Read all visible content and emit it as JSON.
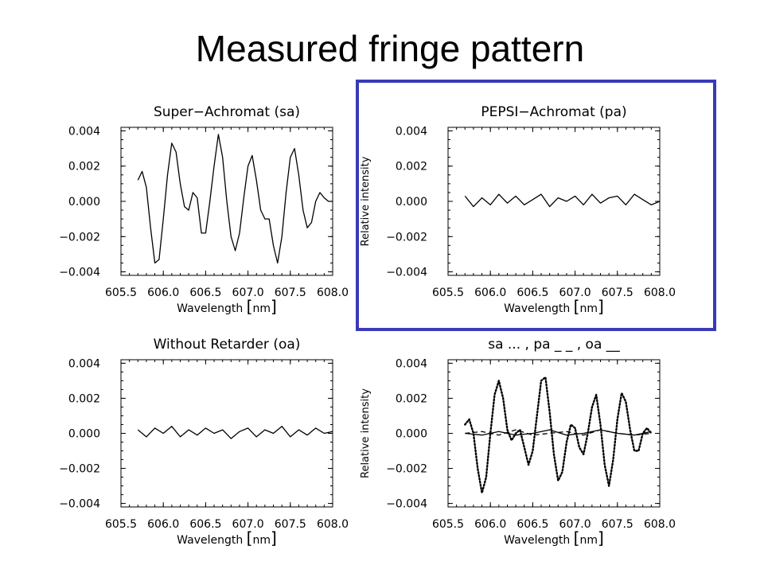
{
  "slide": {
    "title": "Measured fringe pattern",
    "highlight_color": "#3a3ab8"
  },
  "chart_data": [
    {
      "id": "sa",
      "type": "line",
      "title": "Super−Achromat (sa)",
      "xlabel": "Wavelength",
      "xunit": "nm",
      "ylabel": "",
      "xlim": [
        605.5,
        608.0
      ],
      "ylim": [
        -0.0042,
        0.0042
      ],
      "xticks": [
        "605.5",
        "606.0",
        "606.5",
        "607.0",
        "607.5",
        "608.0"
      ],
      "yticks": [
        "0.004",
        "0.002",
        "0.000",
        "−0.002",
        "−0.004"
      ],
      "series": [
        {
          "style": "solid",
          "x": [
            605.7,
            605.75,
            605.8,
            605.85,
            605.9,
            605.95,
            606.0,
            606.05,
            606.1,
            606.15,
            606.2,
            606.25,
            606.3,
            606.35,
            606.4,
            606.45,
            606.5,
            606.55,
            606.6,
            606.65,
            606.7,
            606.75,
            606.8,
            606.85,
            606.9,
            606.95,
            607.0,
            607.05,
            607.1,
            607.15,
            607.2,
            607.25,
            607.3,
            607.35,
            607.4,
            607.45,
            607.5,
            607.55,
            607.6,
            607.65,
            607.7,
            607.75,
            607.8,
            607.85,
            607.9,
            607.95,
            608.0
          ],
          "y": [
            0.0012,
            0.0017,
            0.0008,
            -0.0015,
            -0.0035,
            -0.0033,
            -0.001,
            0.0015,
            0.0033,
            0.0028,
            0.001,
            -0.0003,
            -0.0005,
            0.0005,
            0.0002,
            -0.0018,
            -0.0018,
            0.0,
            0.002,
            0.0038,
            0.0025,
            0.0,
            -0.002,
            -0.0028,
            -0.0018,
            0.0002,
            0.002,
            0.0026,
            0.0012,
            -0.0005,
            -0.001,
            -0.001,
            -0.0025,
            -0.0035,
            -0.002,
            0.0005,
            0.0025,
            0.003,
            0.0015,
            -0.0005,
            -0.0015,
            -0.0012,
            0.0,
            0.0005,
            0.0002,
            0.0,
            0.0
          ]
        }
      ]
    },
    {
      "id": "pa",
      "type": "line",
      "title": "PEPSI−Achromat (pa)",
      "xlabel": "Wavelength",
      "xunit": "nm",
      "ylabel": "Relative intensity",
      "xlim": [
        605.5,
        608.0
      ],
      "ylim": [
        -0.0042,
        0.0042
      ],
      "xticks": [
        "605.5",
        "606.0",
        "606.5",
        "607.0",
        "607.5",
        "608.0"
      ],
      "yticks": [
        "0.004",
        "0.002",
        "0.000",
        "−0.002",
        "−0.004"
      ],
      "series": [
        {
          "style": "solid",
          "x": [
            605.7,
            605.8,
            605.9,
            606.0,
            606.1,
            606.2,
            606.3,
            606.4,
            606.5,
            606.6,
            606.7,
            606.8,
            606.9,
            607.0,
            607.1,
            607.2,
            607.3,
            607.4,
            607.5,
            607.6,
            607.7,
            607.8,
            607.9,
            608.0
          ],
          "y": [
            0.0003,
            -0.0003,
            0.0002,
            -0.0002,
            0.0004,
            -0.0001,
            0.0003,
            -0.0002,
            0.0001,
            0.0004,
            -0.0003,
            0.0002,
            0.0,
            0.0003,
            -0.0002,
            0.0004,
            -0.0001,
            0.0002,
            0.0003,
            -0.0002,
            0.0004,
            0.0001,
            -0.0002,
            0.0
          ]
        }
      ]
    },
    {
      "id": "oa",
      "type": "line",
      "title": "Without Retarder (oa)",
      "xlabel": "Wavelength",
      "xunit": "nm",
      "ylabel": "",
      "xlim": [
        605.5,
        608.0
      ],
      "ylim": [
        -0.0042,
        0.0042
      ],
      "xticks": [
        "605.5",
        "606.0",
        "606.5",
        "607.0",
        "607.5",
        "608.0"
      ],
      "yticks": [
        "0.004",
        "0.002",
        "0.000",
        "−0.002",
        "−0.004"
      ],
      "series": [
        {
          "style": "solid",
          "x": [
            605.7,
            605.8,
            605.9,
            606.0,
            606.1,
            606.2,
            606.3,
            606.4,
            606.5,
            606.6,
            606.7,
            606.8,
            606.9,
            607.0,
            607.1,
            607.2,
            607.3,
            607.4,
            607.5,
            607.6,
            607.7,
            607.8,
            607.9,
            608.0
          ],
          "y": [
            0.0002,
            -0.0002,
            0.0003,
            0.0,
            0.0004,
            -0.0002,
            0.0002,
            -0.0001,
            0.0003,
            0.0,
            0.0002,
            -0.0003,
            0.0001,
            0.0003,
            -0.0002,
            0.0002,
            0.0,
            0.0004,
            -0.0002,
            0.0002,
            -0.0001,
            0.0003,
            0.0,
            0.0001
          ]
        }
      ]
    },
    {
      "id": "comparison",
      "type": "line",
      "title": "sa ... , pa _ _ , oa __",
      "xlabel": "Wavelength",
      "xunit": "nm",
      "ylabel": "Relative intensity",
      "xlim": [
        605.5,
        608.0
      ],
      "ylim": [
        -0.0042,
        0.0042
      ],
      "xticks": [
        "605.5",
        "606.0",
        "606.5",
        "607.0",
        "607.5",
        "608.0"
      ],
      "yticks": [
        "0.004",
        "0.002",
        "0.000",
        "−0.002",
        "−0.004"
      ],
      "series": [
        {
          "name": "sa",
          "style": "dotted",
          "x": [
            605.7,
            605.75,
            605.8,
            605.85,
            605.9,
            605.95,
            606.0,
            606.05,
            606.1,
            606.15,
            606.2,
            606.25,
            606.3,
            606.35,
            606.4,
            606.45,
            606.5,
            606.55,
            606.6,
            606.65,
            606.7,
            606.75,
            606.8,
            606.85,
            606.9,
            606.95,
            607.0,
            607.05,
            607.1,
            607.15,
            607.2,
            607.25,
            607.3,
            607.35,
            607.4,
            607.45,
            607.5,
            607.55,
            607.6,
            607.65,
            607.7,
            607.75,
            607.8,
            607.85,
            607.9
          ],
          "y": [
            0.0005,
            0.0008,
            0.0,
            -0.002,
            -0.0034,
            -0.0025,
            0.0,
            0.0022,
            0.003,
            0.002,
            0.0002,
            -0.0004,
            0.0,
            0.0002,
            -0.0008,
            -0.0018,
            -0.001,
            0.001,
            0.003,
            0.0032,
            0.0012,
            -0.0012,
            -0.0027,
            -0.0022,
            -0.0005,
            0.0005,
            0.0003,
            -0.0008,
            -0.0012,
            0.0,
            0.0015,
            0.0022,
            0.0005,
            -0.0018,
            -0.003,
            -0.0015,
            0.0008,
            0.0023,
            0.0018,
            0.0002,
            -0.001,
            -0.001,
            0.0,
            0.0003,
            0.0
          ]
        },
        {
          "name": "pa",
          "style": "dashed",
          "x": [
            605.7,
            605.9,
            606.1,
            606.3,
            606.5,
            606.7,
            606.9,
            607.1,
            607.3,
            607.5,
            607.7,
            607.9
          ],
          "y": [
            0.0,
            0.0001,
            -0.0001,
            0.0002,
            -0.0001,
            0.0,
            0.0001,
            -0.0001,
            0.0002,
            0.0,
            -0.0001,
            0.0
          ]
        },
        {
          "name": "oa",
          "style": "solid",
          "x": [
            605.7,
            605.9,
            606.1,
            606.3,
            606.5,
            606.7,
            606.9,
            607.1,
            607.3,
            607.5,
            607.7,
            607.9
          ],
          "y": [
            0.0,
            -0.0001,
            0.0001,
            -0.0001,
            0.0,
            0.0002,
            -0.0001,
            0.0,
            0.0002,
            0.0,
            -0.0001,
            0.0001
          ]
        }
      ]
    }
  ]
}
